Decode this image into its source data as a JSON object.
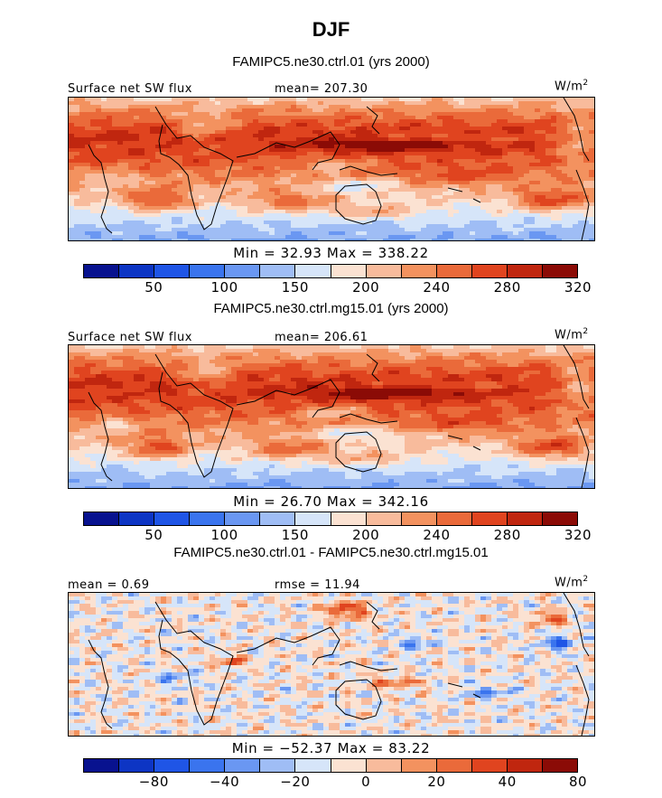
{
  "title": "DJF",
  "palette": [
    "#08128f",
    "#0d35c4",
    "#1f55e6",
    "#3a74ee",
    "#6a97f2",
    "#9fbdf5",
    "#d6e5f9",
    "#fbe2d2",
    "#f8bb9c",
    "#f3925f",
    "#ea6a3a",
    "#e0441f",
    "#c0260f",
    "#8b0b06"
  ],
  "chart_data": [
    {
      "type": "heatmap",
      "case": "FAMIPC5.ne30.ctrl.01 (yrs 2000)",
      "variable": "Surface net SW flux",
      "stat_label": "mean= 207.30",
      "units": "W/m",
      "units_sup": "2",
      "min": 32.93,
      "max": 338.22,
      "minmax_text": "Min =   32.93 Max = 338.22",
      "levels": [
        20,
        50,
        75,
        100,
        125,
        150,
        175,
        200,
        220,
        240,
        260,
        280,
        300,
        320,
        340
      ],
      "tick_labels": [
        "50",
        "100",
        "150",
        "200",
        "240",
        "280",
        "320"
      ]
    },
    {
      "type": "heatmap",
      "case": "FAMIPC5.ne30.ctrl.mg15.01 (yrs 2000)",
      "variable": "Surface net SW flux",
      "stat_label": "mean= 206.61",
      "units": "W/m",
      "units_sup": "2",
      "min": 26.7,
      "max": 342.16,
      "minmax_text": "Min =   26.70 Max = 342.16",
      "levels": [
        20,
        50,
        75,
        100,
        125,
        150,
        175,
        200,
        220,
        240,
        260,
        280,
        300,
        320,
        340
      ],
      "tick_labels": [
        "50",
        "100",
        "150",
        "200",
        "240",
        "280",
        "320"
      ]
    },
    {
      "type": "heatmap",
      "case": "FAMIPC5.ne30.ctrl.01 - FAMIPC5.ne30.ctrl.mg15.01",
      "variable": "mean =   0.69",
      "stat_label": "rmse =  11.94",
      "units": "W/m",
      "units_sup": "2",
      "min": -52.37,
      "max": 83.22,
      "minmax_text": "Min = −52.37 Max =  83.22",
      "levels": [
        -100,
        -80,
        -60,
        -40,
        -30,
        -20,
        -10,
        0,
        10,
        20,
        30,
        40,
        60,
        80,
        100
      ],
      "tick_labels": [
        "−80",
        "−40",
        "−20",
        "0",
        "20",
        "40",
        "80"
      ]
    }
  ]
}
